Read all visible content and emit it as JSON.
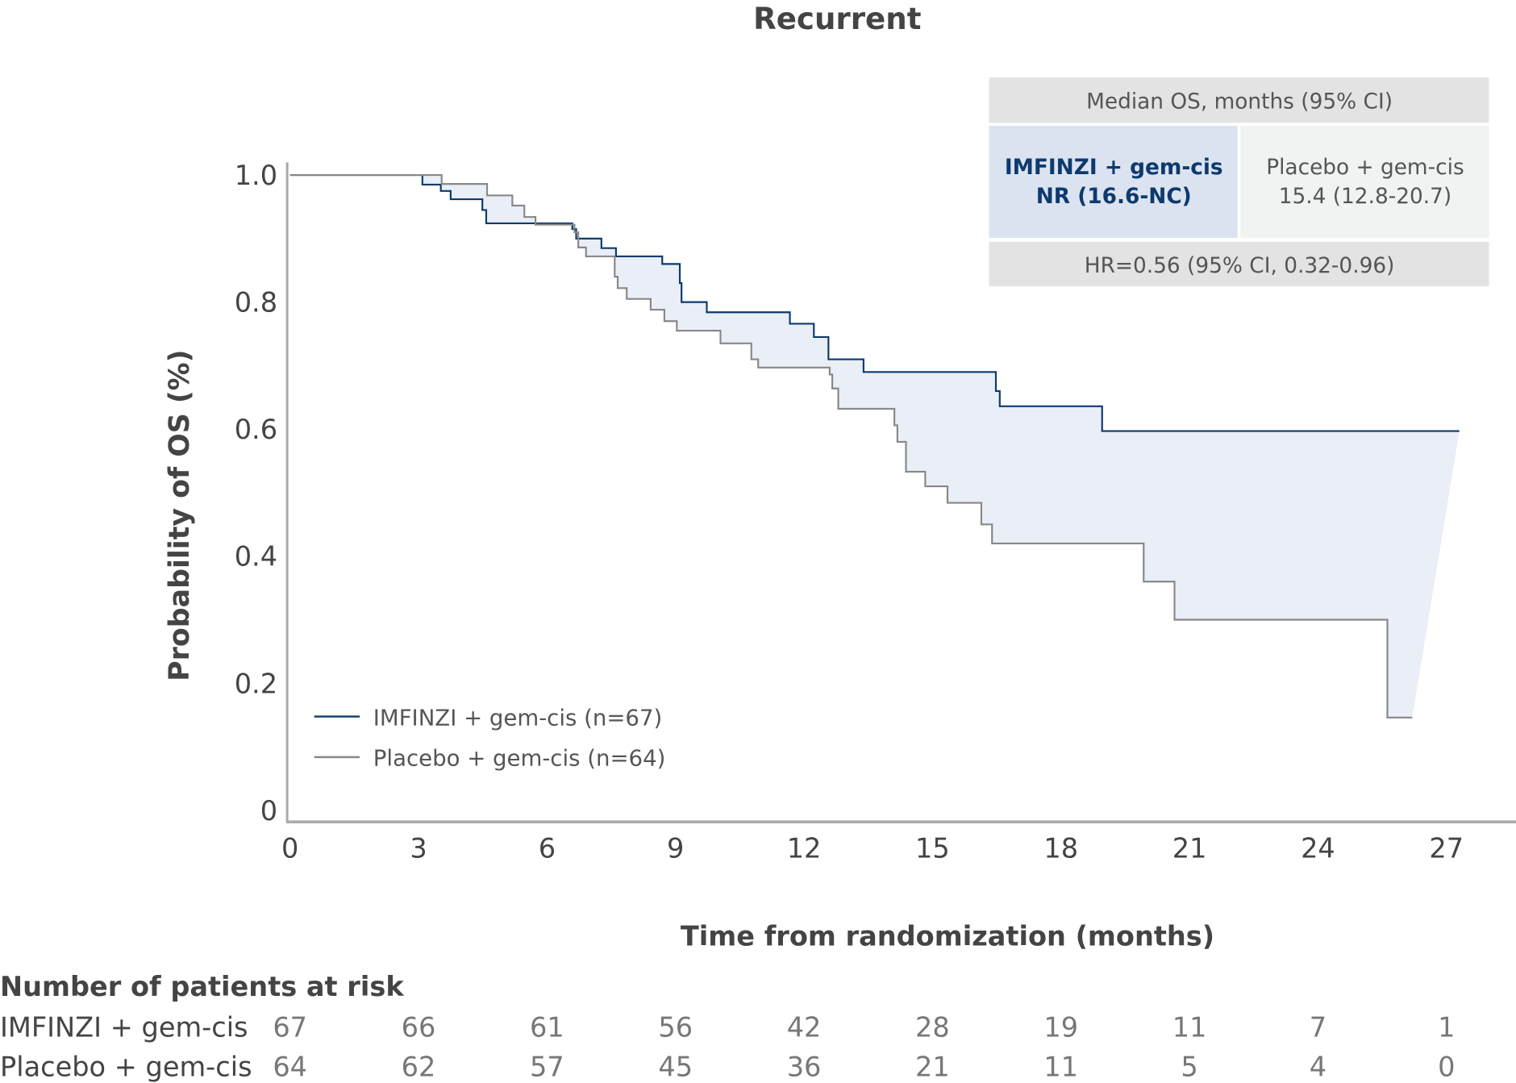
{
  "chart_data": {
    "type": "line",
    "title": "Recurrent",
    "xlabel": "Time from randomization (months)",
    "ylabel": "Probability of OS (%)",
    "xlim": [
      0,
      27
    ],
    "ylim": [
      0,
      1.0
    ],
    "xticks": [
      "0",
      "3",
      "6",
      "9",
      "12",
      "15",
      "18",
      "21",
      "24",
      "27"
    ],
    "yticks": [
      "0",
      "0.2",
      "0.4",
      "0.6",
      "0.8",
      "1.0"
    ],
    "grid": false,
    "legend_position": "bottom-left",
    "series": [
      {
        "name": "IMFINZI + gem-cis (n=67)",
        "color": "#0d3a6e",
        "step": true,
        "x": [
          0,
          3.09,
          3.52,
          3.75,
          4.49,
          4.58,
          6.59,
          6.68,
          7.27,
          7.61,
          8.69,
          9.1,
          9.14,
          9.73,
          11.67,
          12.23,
          12.57,
          13.39,
          16.48,
          16.57,
          18.96,
          27.3
        ],
        "y": [
          1.0,
          0.985,
          0.975,
          0.962,
          0.945,
          0.924,
          0.915,
          0.9,
          0.885,
          0.872,
          0.86,
          0.83,
          0.8,
          0.784,
          0.766,
          0.745,
          0.71,
          0.69,
          0.66,
          0.636,
          0.597,
          0.597
        ]
      },
      {
        "name": "Placebo + gem-cis (n=64)",
        "color": "#888888",
        "step": true,
        "x": [
          0,
          3.54,
          4.6,
          5.19,
          5.47,
          5.73,
          6.64,
          6.73,
          6.91,
          7.58,
          7.65,
          7.86,
          8.42,
          8.74,
          9.03,
          10.05,
          10.77,
          10.93,
          12.6,
          12.66,
          12.8,
          14.11,
          14.18,
          14.38,
          14.83,
          15.35,
          16.14,
          16.39,
          19.93,
          20.65,
          25.62,
          26.2
        ],
        "y": [
          1.0,
          0.986,
          0.968,
          0.952,
          0.934,
          0.922,
          0.91,
          0.886,
          0.872,
          0.84,
          0.822,
          0.805,
          0.788,
          0.77,
          0.755,
          0.735,
          0.71,
          0.697,
          0.686,
          0.664,
          0.632,
          0.606,
          0.58,
          0.533,
          0.51,
          0.484,
          0.45,
          0.42,
          0.36,
          0.3,
          0.146,
          0.146
        ]
      }
    ],
    "fill_between_color": "#e9eef7"
  },
  "summary_box": {
    "header": "Median OS, months (95% CI)",
    "imfinzi_label": "IMFINZI + gem-cis",
    "imfinzi_value": "NR (16.6-NC)",
    "placebo_label": "Placebo + gem-cis",
    "placebo_value": "15.4 (12.8-20.7)",
    "hr": "HR=0.56 (95% CI, 0.32-0.96)"
  },
  "at_risk": {
    "title": "Number of patients at risk",
    "rows": [
      {
        "label": "IMFINZI + gem-cis",
        "values": [
          "67",
          "66",
          "61",
          "56",
          "42",
          "28",
          "19",
          "11",
          "7",
          "1"
        ]
      },
      {
        "label": "Placebo + gem-cis",
        "values": [
          "64",
          "62",
          "57",
          "45",
          "36",
          "21",
          "11",
          "5",
          "4",
          "0"
        ]
      }
    ]
  }
}
